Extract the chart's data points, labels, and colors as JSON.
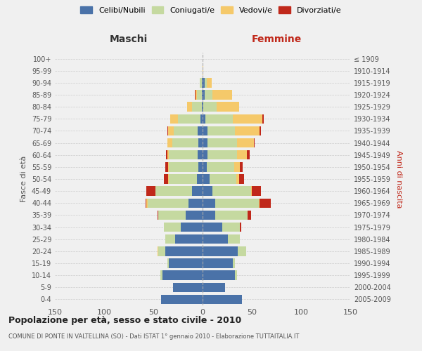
{
  "age_groups": [
    "0-4",
    "5-9",
    "10-14",
    "15-19",
    "20-24",
    "25-29",
    "30-34",
    "35-39",
    "40-44",
    "45-49",
    "50-54",
    "55-59",
    "60-64",
    "65-69",
    "70-74",
    "75-79",
    "80-84",
    "85-89",
    "90-94",
    "95-99",
    "100+"
  ],
  "birth_years": [
    "2005-2009",
    "2000-2004",
    "1995-1999",
    "1990-1994",
    "1985-1989",
    "1980-1984",
    "1975-1979",
    "1970-1974",
    "1965-1969",
    "1960-1964",
    "1955-1959",
    "1950-1954",
    "1945-1949",
    "1940-1944",
    "1935-1939",
    "1930-1934",
    "1925-1929",
    "1920-1924",
    "1915-1919",
    "1910-1914",
    "≤ 1909"
  ],
  "colors": {
    "celibi": "#4a72a8",
    "coniugati": "#c5d9a0",
    "vedovi": "#f5c96a",
    "divorziati": "#c0281a"
  },
  "maschi": {
    "celibi": [
      42,
      30,
      41,
      34,
      38,
      28,
      22,
      17,
      14,
      11,
      6,
      4,
      5,
      4,
      5,
      2,
      1,
      1,
      1,
      0,
      0
    ],
    "coniugati": [
      0,
      0,
      2,
      2,
      7,
      10,
      17,
      28,
      42,
      37,
      28,
      30,
      29,
      27,
      24,
      23,
      10,
      5,
      2,
      0,
      0
    ],
    "vedovi": [
      0,
      0,
      0,
      0,
      1,
      0,
      0,
      0,
      1,
      0,
      1,
      1,
      2,
      5,
      6,
      8,
      5,
      1,
      0,
      0,
      0
    ],
    "divorziati": [
      0,
      0,
      0,
      0,
      0,
      0,
      0,
      1,
      1,
      9,
      4,
      3,
      1,
      0,
      1,
      0,
      0,
      1,
      0,
      0,
      0
    ]
  },
  "femmine": {
    "nubili": [
      40,
      23,
      33,
      31,
      36,
      26,
      20,
      13,
      13,
      10,
      7,
      4,
      5,
      5,
      5,
      3,
      1,
      2,
      2,
      0,
      0
    ],
    "coniugate": [
      0,
      0,
      2,
      2,
      8,
      12,
      18,
      33,
      44,
      39,
      27,
      28,
      30,
      30,
      28,
      28,
      13,
      8,
      2,
      0,
      0
    ],
    "vedove": [
      0,
      0,
      0,
      0,
      0,
      0,
      0,
      0,
      1,
      1,
      3,
      6,
      10,
      17,
      25,
      30,
      23,
      20,
      5,
      1,
      0
    ],
    "divorziate": [
      0,
      0,
      0,
      0,
      0,
      0,
      1,
      3,
      11,
      9,
      5,
      3,
      3,
      1,
      1,
      1,
      0,
      0,
      0,
      0,
      0
    ]
  },
  "title_main": "Popolazione per età, sesso e stato civile - 2010",
  "title_sub": "COMUNE DI PONTE IN VALTELLINA (SO) - Dati ISTAT 1° gennaio 2010 - Elaborazione TUTTAITALIA.IT",
  "xlabel_left": "Maschi",
  "xlabel_right": "Femmine",
  "ylabel_left": "Fasce di età",
  "ylabel_right": "Anni di nascita",
  "xlim": 150,
  "legend_labels": [
    "Celibi/Nubili",
    "Coniugati/e",
    "Vedovi/e",
    "Divorziati/e"
  ],
  "background_color": "#f0f0f0",
  "grid_color": "#cccccc"
}
